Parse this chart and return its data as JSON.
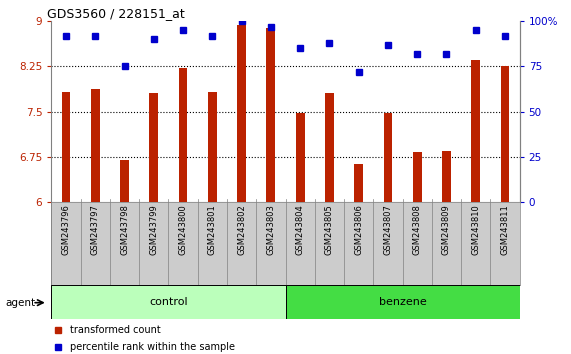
{
  "title": "GDS3560 / 228151_at",
  "samples": [
    "GSM243796",
    "GSM243797",
    "GSM243798",
    "GSM243799",
    "GSM243800",
    "GSM243801",
    "GSM243802",
    "GSM243803",
    "GSM243804",
    "GSM243805",
    "GSM243806",
    "GSM243807",
    "GSM243808",
    "GSM243809",
    "GSM243810",
    "GSM243811"
  ],
  "bar_values": [
    7.82,
    7.87,
    6.7,
    7.8,
    8.22,
    7.83,
    8.93,
    8.88,
    7.47,
    7.8,
    6.63,
    7.47,
    6.83,
    6.85,
    8.35,
    8.25
  ],
  "dot_values": [
    92,
    92,
    75,
    90,
    95,
    92,
    100,
    97,
    85,
    88,
    72,
    87,
    82,
    82,
    95,
    92
  ],
  "bar_color": "#bb2200",
  "dot_color": "#0000cc",
  "ylim_left": [
    6,
    9
  ],
  "ylim_right": [
    0,
    100
  ],
  "yticks_left": [
    6,
    6.75,
    7.5,
    8.25,
    9
  ],
  "yticks_right": [
    0,
    25,
    50,
    75,
    100
  ],
  "ytick_labels_left": [
    "6",
    "6.75",
    "7.5",
    "8.25",
    "9"
  ],
  "ytick_labels_right": [
    "0",
    "25",
    "50",
    "75",
    "100%"
  ],
  "groups": [
    {
      "label": "control",
      "start": 0,
      "end": 8,
      "color": "#bbffbb"
    },
    {
      "label": "benzene",
      "start": 8,
      "end": 16,
      "color": "#44dd44"
    }
  ],
  "agent_label": "agent",
  "legend_items": [
    {
      "label": "transformed count",
      "color": "#bb2200"
    },
    {
      "label": "percentile rank within the sample",
      "color": "#0000cc"
    }
  ],
  "background_color": "#ffffff",
  "plot_bg_color": "#ffffff",
  "bar_bg_color": "#cccccc"
}
